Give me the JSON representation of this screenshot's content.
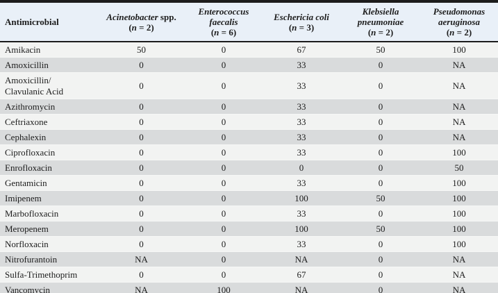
{
  "table": {
    "antimicrobial_header": "Antimicrobial",
    "tokens": {
      "n_open": "(",
      "n_var": "n",
      "n_eq": " = ",
      "n_close": ")"
    },
    "columns": [
      {
        "name_italic": "Acinetobacter",
        "name_roman": " spp.",
        "n": "2"
      },
      {
        "name_italic": "Enterococcus faecalis",
        "name_roman": "",
        "n": "6"
      },
      {
        "name_italic": "Eschericia coli",
        "name_roman": "",
        "n": "3"
      },
      {
        "name_italic": "Klebsiella pneumoniae",
        "name_roman": "",
        "n": "2"
      },
      {
        "name_italic": "Pseudomonas aeruginosa",
        "name_roman": "",
        "n": "2"
      }
    ],
    "rows": [
      {
        "antimicrobial": "Amikacin",
        "values": [
          "50",
          "0",
          "67",
          "50",
          "100"
        ]
      },
      {
        "antimicrobial": "Amoxicillin",
        "values": [
          "0",
          "0",
          "33",
          "0",
          "NA"
        ]
      },
      {
        "antimicrobial": "Amoxicillin/\nClavulanic Acid",
        "values": [
          "0",
          "0",
          "33",
          "0",
          "NA"
        ]
      },
      {
        "antimicrobial": "Azithromycin",
        "values": [
          "0",
          "0",
          "33",
          "0",
          "NA"
        ]
      },
      {
        "antimicrobial": "Ceftriaxone",
        "values": [
          "0",
          "0",
          "33",
          "0",
          "NA"
        ]
      },
      {
        "antimicrobial": "Cephalexin",
        "values": [
          "0",
          "0",
          "33",
          "0",
          "NA"
        ]
      },
      {
        "antimicrobial": "Ciprofloxacin",
        "values": [
          "0",
          "0",
          "33",
          "0",
          "100"
        ]
      },
      {
        "antimicrobial": "Enrofloxacin",
        "values": [
          "0",
          "0",
          "0",
          "0",
          "50"
        ]
      },
      {
        "antimicrobial": "Gentamicin",
        "values": [
          "0",
          "0",
          "33",
          "0",
          "100"
        ]
      },
      {
        "antimicrobial": "Imipenem",
        "values": [
          "0",
          "0",
          "100",
          "50",
          "100"
        ]
      },
      {
        "antimicrobial": "Marbofloxacin",
        "values": [
          "0",
          "0",
          "33",
          "0",
          "100"
        ]
      },
      {
        "antimicrobial": "Meropenem",
        "values": [
          "0",
          "0",
          "100",
          "50",
          "100"
        ]
      },
      {
        "antimicrobial": "Norfloxacin",
        "values": [
          "0",
          "0",
          "33",
          "0",
          "100"
        ]
      },
      {
        "antimicrobial": "Nitrofurantoin",
        "values": [
          "NA",
          "0",
          "NA",
          "0",
          "NA"
        ]
      },
      {
        "antimicrobial": "Sulfa-Trimethoprim",
        "values": [
          "0",
          "0",
          "67",
          "0",
          "NA"
        ]
      },
      {
        "antimicrobial": "Vancomycin",
        "values": [
          "NA",
          "100",
          "NA",
          "0",
          "NA"
        ]
      }
    ],
    "colors": {
      "header_bg": "#e9f0f8",
      "row_light": "#f2f3f2",
      "row_dark": "#d9dbdc",
      "border": "#1c1c1c"
    }
  }
}
